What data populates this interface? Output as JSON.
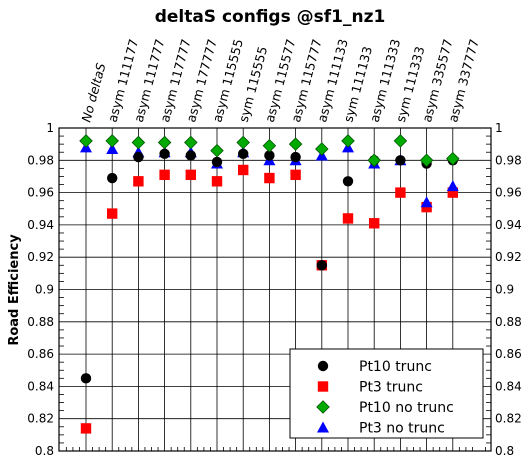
{
  "chart_data": {
    "type": "scatter",
    "title": "deltaS configs @sf1_nz1",
    "xlabel": "",
    "ylabel": "Road  Efficiency",
    "ylim": [
      0.8,
      1.0
    ],
    "yticks": [
      "0.8",
      "0.82",
      "0.84",
      "0.86",
      "0.88",
      "0.9",
      "0.92",
      "0.94",
      "0.96",
      "0.98",
      "1"
    ],
    "grid": true,
    "legend_position": "bottom-right",
    "categories": [
      "No deltaS",
      "asym 111177",
      "asym 111777",
      "asym 117777",
      "asym 177777",
      "asym 115555",
      "sym 115555",
      "asym 115577",
      "asym 115777",
      "asym 111133",
      "sym 111133",
      "asym 111333",
      "sym 111333",
      "asym 335577",
      "asym 337777"
    ],
    "series": [
      {
        "name": "Pt10 trunc",
        "marker": "circle",
        "color": "#000000",
        "values": [
          0.845,
          0.969,
          0.982,
          0.984,
          0.983,
          0.979,
          0.984,
          0.983,
          0.982,
          0.915,
          0.967,
          0.98,
          0.98,
          0.978,
          0.98
        ]
      },
      {
        "name": "Pt3 trunc",
        "marker": "square",
        "color": "#ff0000",
        "values": [
          0.814,
          0.947,
          0.967,
          0.971,
          0.971,
          0.967,
          0.974,
          0.969,
          0.971,
          0.915,
          0.944,
          0.941,
          0.96,
          0.951,
          0.96
        ]
      },
      {
        "name": "Pt10 no trunc",
        "marker": "diamond",
        "color": "#00aa00",
        "values": [
          0.992,
          0.992,
          0.991,
          0.991,
          0.991,
          0.986,
          0.991,
          0.989,
          0.99,
          0.987,
          0.992,
          0.98,
          0.992,
          0.98,
          0.981
        ]
      },
      {
        "name": "Pt3 no trunc",
        "marker": "triangle",
        "color": "#0000ff",
        "values": [
          0.988,
          0.987,
          0.985,
          0.985,
          0.985,
          0.978,
          0.985,
          0.98,
          0.98,
          0.983,
          0.988,
          0.978,
          0.98,
          0.954,
          0.964
        ]
      }
    ]
  }
}
